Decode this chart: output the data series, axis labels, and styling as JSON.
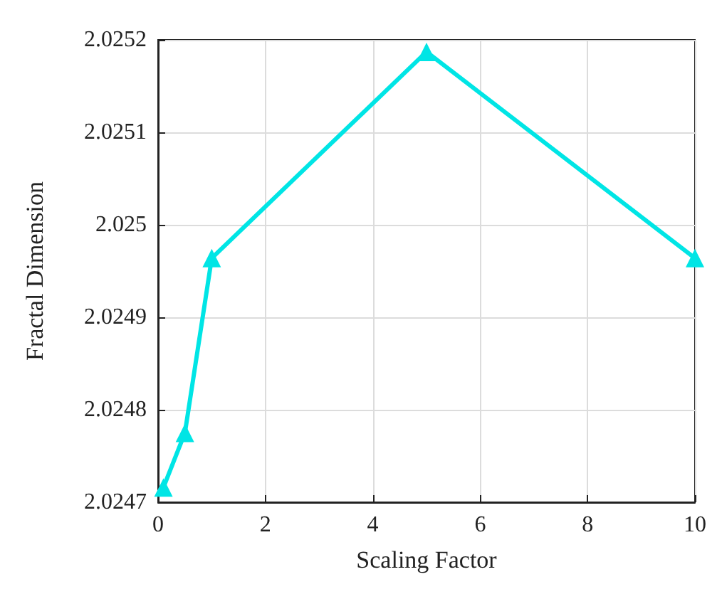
{
  "chart_data": {
    "type": "line",
    "xlabel": "Scaling Factor",
    "ylabel": "Fractal Dimension",
    "x": [
      0.1,
      0.5,
      1,
      5,
      10
    ],
    "series": [
      {
        "color": "#00e5e5",
        "values": [
          2.024716,
          2.024775,
          2.024964,
          2.025187,
          2.024964
        ]
      }
    ],
    "xlim": [
      0,
      10
    ],
    "xticks": [
      0,
      2,
      4,
      6,
      8,
      10
    ],
    "ylim": [
      2.0247,
      2.0252
    ],
    "yticks": [
      2.0247,
      2.0248,
      2.0249,
      2.025,
      2.0251,
      2.0252
    ],
    "grid": true,
    "marker": "triangle",
    "line_style": "solid"
  }
}
